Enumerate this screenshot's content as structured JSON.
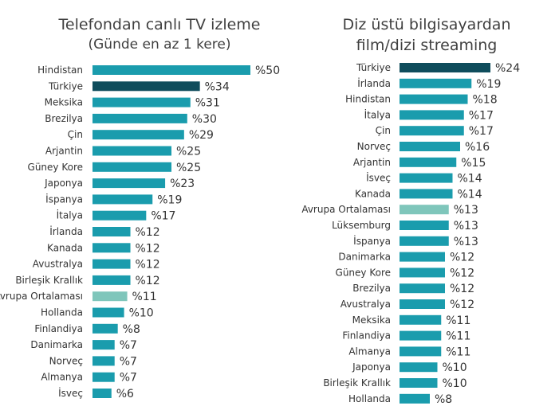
{
  "colors": {
    "bar": "#1a9cad",
    "highlight": "#0f4d5c",
    "average": "#7fc6bb"
  },
  "chart_data": [
    {
      "type": "bar",
      "orientation": "horizontal",
      "title": "Telefondan canlı TV izleme",
      "subtitle": "(Günde en az 1 kere)",
      "value_prefix": "%",
      "highlight": "Türkiye",
      "average": "Avrupa Ortalaması",
      "categories": [
        "Hindistan",
        "Türkiye",
        "Meksika",
        "Brezilya",
        "Çin",
        "Arjantin",
        "Güney Kore",
        "Japonya",
        "İspanya",
        "İtalya",
        "İrlanda",
        "Kanada",
        "Avustralya",
        "Birleşik Krallık",
        "Avrupa Ortalaması",
        "Hollanda",
        "Finlandiya",
        "Danimarka",
        "Norveç",
        "Almanya",
        "İsveç"
      ],
      "values": [
        50,
        34,
        31,
        30,
        29,
        25,
        25,
        23,
        19,
        17,
        12,
        12,
        12,
        12,
        11,
        10,
        8,
        7,
        7,
        7,
        6
      ]
    },
    {
      "type": "bar",
      "orientation": "horizontal",
      "title": "Diz üstü bilgisayardan film/dizi streaming",
      "subtitle": "",
      "value_prefix": "%",
      "highlight": "Türkiye",
      "average": "Avrupa Ortalaması",
      "categories": [
        "Türkiye",
        "İrlanda",
        "Hindistan",
        "İtalya",
        "Çin",
        "Norveç",
        "Arjantin",
        "İsveç",
        "Kanada",
        "Avrupa Ortalaması",
        "Lüksemburg",
        "İspanya",
        "Danimarka",
        "Güney Kore",
        "Brezilya",
        "Avustralya",
        "Meksika",
        "Finlandiya",
        "Almanya",
        "Japonya",
        "Birleşik Krallık",
        "Hollanda"
      ],
      "values": [
        24,
        19,
        18,
        17,
        17,
        16,
        15,
        14,
        14,
        13,
        13,
        13,
        12,
        12,
        12,
        12,
        11,
        11,
        11,
        10,
        10,
        8
      ]
    }
  ]
}
